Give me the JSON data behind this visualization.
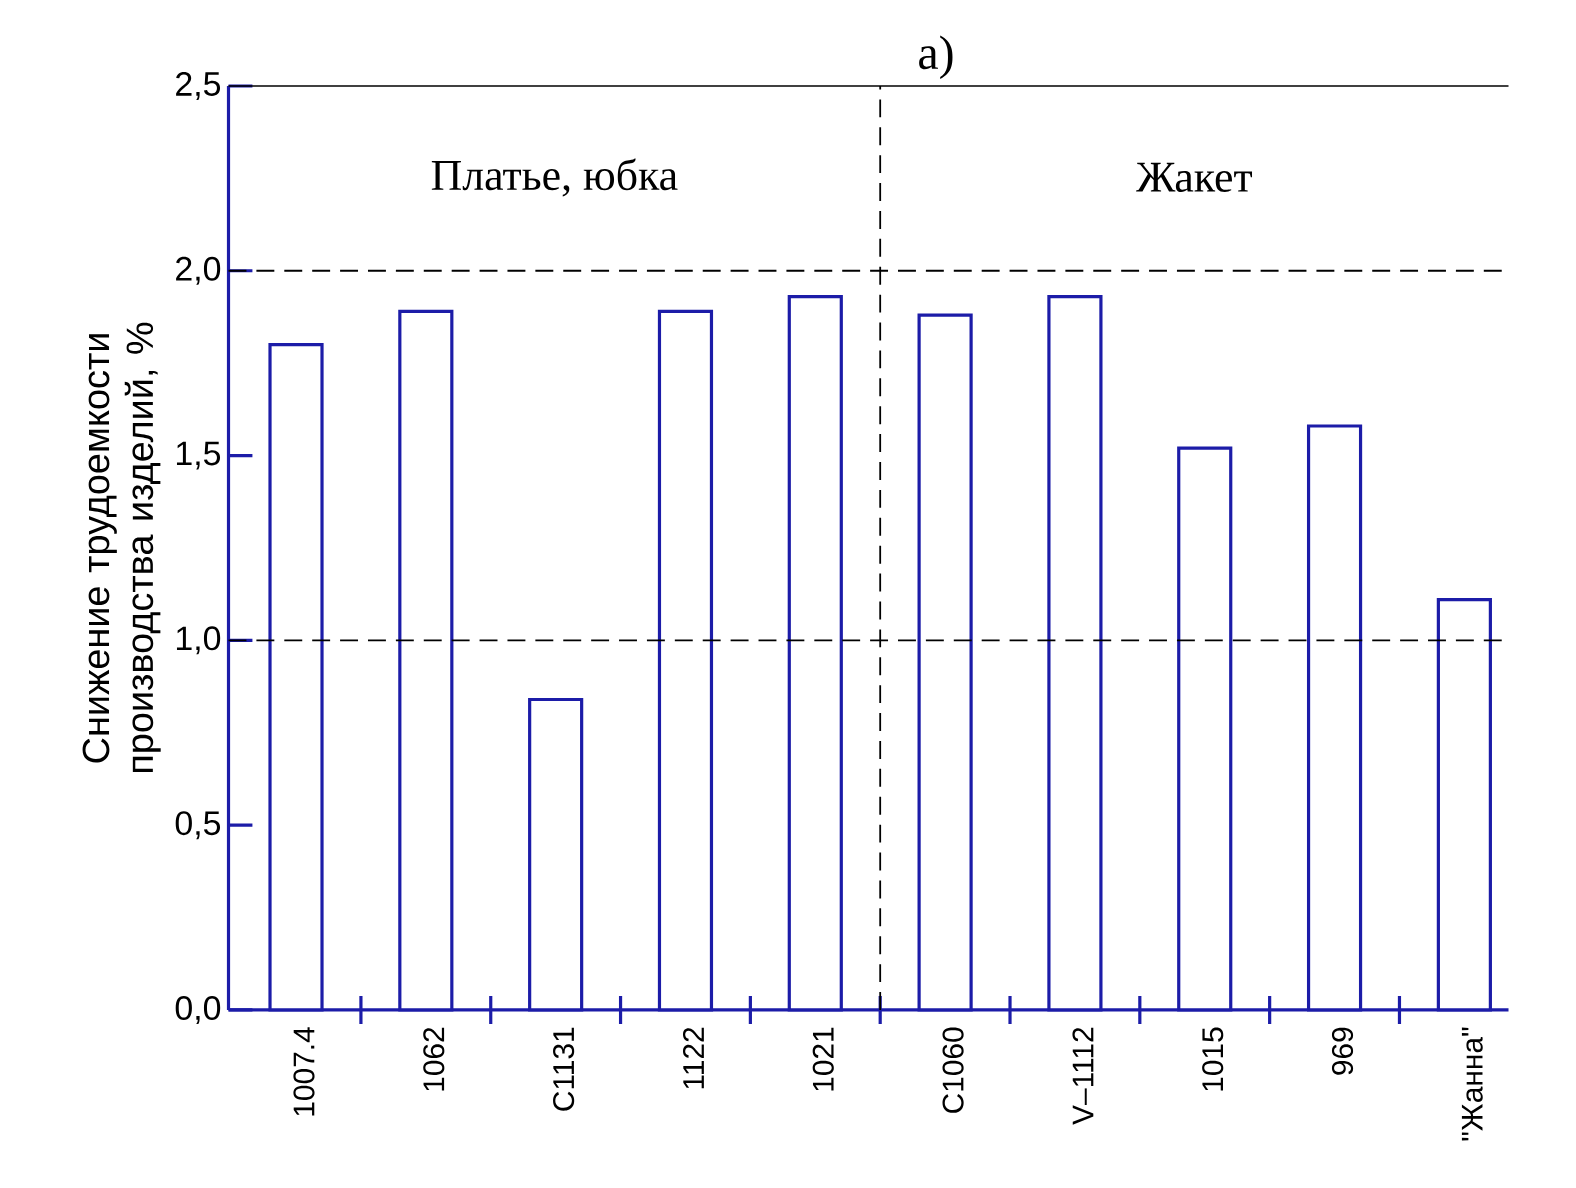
{
  "chart_data": {
    "type": "bar",
    "title": "а)",
    "ylabel": "Снижение трудоемкости производства изделий, %",
    "categories": [
      "1007.4",
      "1062",
      "С1131",
      "1122",
      "1021",
      "С1060",
      "V–1112",
      "1015",
      "969",
      "\"Жанна\""
    ],
    "values": [
      1.8,
      1.89,
      0.84,
      1.89,
      1.93,
      1.88,
      1.93,
      1.52,
      1.58,
      1.11
    ],
    "color": "#1c1ca8",
    "ylim": [
      0,
      2.5
    ],
    "yticks": [
      {
        "value": 0,
        "label": "0,0"
      },
      {
        "value": 0.5,
        "label": "0,5"
      },
      {
        "value": 1,
        "label": "1,0"
      },
      {
        "value": 1.5,
        "label": "1,5"
      },
      {
        "value": 2,
        "label": "2,0"
      },
      {
        "value": 2.5,
        "label": "2,5"
      }
    ],
    "ref_lines": [
      {
        "axis": "y",
        "value": 1,
        "color": "#000000",
        "line_style": "dashed"
      },
      {
        "axis": "y",
        "value": 2,
        "color": "#000000",
        "line_style": "dashed"
      }
    ],
    "annotations": [
      "Платье, юбка",
      "Жакет"
    ],
    "grid": false
  }
}
